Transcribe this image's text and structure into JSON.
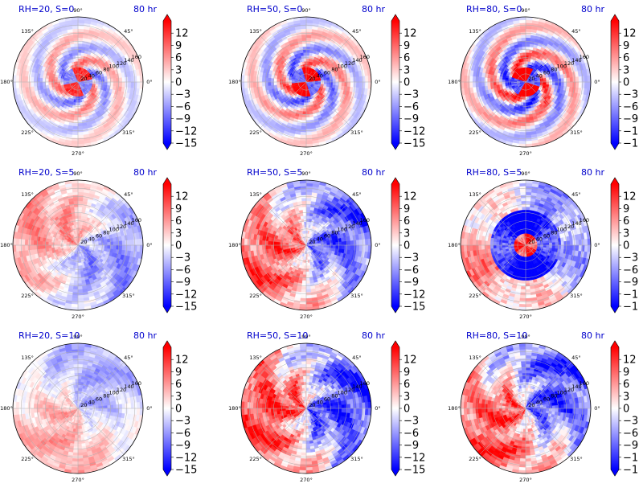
{
  "chart_data": {
    "type": "heatmap",
    "projection": "polar",
    "colormap": "bwr",
    "color_limits": [
      -15,
      15
    ],
    "colorbar_ticks": [
      "12",
      "9",
      "6",
      "3",
      "0",
      "−3",
      "−6",
      "−9",
      "−12",
      "−15"
    ],
    "colorbar_extend": "both",
    "angle_ticks": [
      "90°",
      "45°",
      "0°",
      "315°",
      "270°",
      "225°",
      "180°",
      "135°"
    ],
    "radial_ticks": [
      "20",
      "40",
      "60",
      "80",
      "100",
      "120",
      "140",
      "160"
    ],
    "r_max": 160,
    "time_label": "80 hr",
    "panels": [
      {
        "title": "RH=20, S=0",
        "pattern": "spiral",
        "strength": 0.75,
        "seed": 11
      },
      {
        "title": "RH=50, S=0",
        "pattern": "spiral",
        "strength": 0.95,
        "seed": 23
      },
      {
        "title": "RH=80, S=0",
        "pattern": "spiral",
        "strength": 1.15,
        "seed": 37
      },
      {
        "title": "RH=20, S=5",
        "pattern": "dipole",
        "strength": 0.55,
        "seed": 41,
        "rot": -0.6
      },
      {
        "title": "RH=50, S=5",
        "pattern": "dipole",
        "strength": 0.85,
        "seed": 53,
        "rot": 0.2
      },
      {
        "title": "RH=80, S=5",
        "pattern": "ring",
        "strength": 1.15,
        "seed": 67
      },
      {
        "title": "RH=20, S=10",
        "pattern": "dipole",
        "strength": 0.45,
        "seed": 71,
        "rot": 0.9
      },
      {
        "title": "RH=50, S=10",
        "pattern": "dipole",
        "strength": 1.0,
        "seed": 83,
        "rot": 0.0
      },
      {
        "title": "RH=80, S=10",
        "pattern": "dipole",
        "strength": 0.95,
        "seed": 97,
        "rot": 0.45
      }
    ]
  }
}
